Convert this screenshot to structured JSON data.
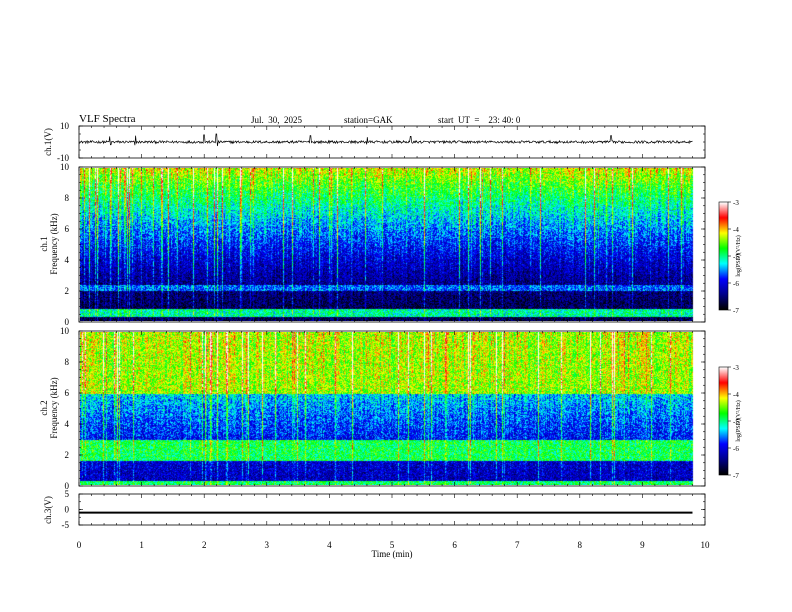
{
  "header": {
    "title": "VLF  Spectra",
    "date": "Jul.  30,  2025",
    "station": "station=GAK",
    "start": "start  UT  =    23: 40: 0"
  },
  "chart_data": [
    {
      "type": "line",
      "name": "ch1-waveform",
      "ylabel": "ch.1(V)",
      "ylim": [
        -10,
        10
      ],
      "yticks": [
        "10",
        "-10"
      ],
      "baseline": 0.0,
      "spike_times_min": [
        0.5,
        0.9,
        2.0,
        2.2,
        3.7,
        4.6,
        5.3,
        8.5
      ],
      "spike_values": [
        3.5,
        4.0,
        4.5,
        5.0,
        4.0,
        3.0,
        3.5,
        4.0
      ]
    },
    {
      "type": "heatmap",
      "name": "ch1-spectrogram",
      "ylabel": "ch.1\nFrequency (kHz)",
      "ylim": [
        0,
        10
      ],
      "yticks": [
        "0",
        "2",
        "4",
        "6",
        "8",
        "10"
      ],
      "xlim": [
        0,
        10
      ],
      "data_extent_min": 9.8,
      "colorbar": {
        "label": "log(PSD)(V²/Hz)",
        "range": [
          -7,
          -3
        ],
        "ticks": [
          "-3",
          "-4",
          "-5",
          "-6",
          "-7"
        ]
      },
      "band_khz": [
        [
          2.0,
          2.4,
          -5.8
        ],
        [
          0.3,
          0.8,
          -5.2
        ]
      ],
      "floor_log_psd": -6.8,
      "top_log_psd": -4.5
    },
    {
      "type": "heatmap",
      "name": "ch2-spectrogram",
      "ylabel": "ch.2\nFrequency (kHz)",
      "ylim": [
        0,
        10
      ],
      "yticks": [
        "0",
        "2",
        "4",
        "6",
        "8",
        "10"
      ],
      "xlim": [
        0,
        10
      ],
      "data_extent_min": 9.8,
      "colorbar": {
        "label": "log(PSD)(V²/Hz)",
        "range": [
          -7,
          -3
        ],
        "ticks": [
          "-3",
          "-4",
          "-5",
          "-6",
          "-7"
        ]
      },
      "band_khz": [
        [
          1.6,
          3.0,
          -5.0
        ],
        [
          6.0,
          10.0,
          -4.6
        ],
        [
          0.0,
          0.3,
          -5.0
        ]
      ],
      "floor_log_psd": -6.3,
      "top_log_psd": -4.6
    },
    {
      "type": "line",
      "name": "ch3-waveform",
      "ylabel": "ch.3(V)",
      "ylim": [
        -5,
        5
      ],
      "yticks": [
        "5",
        "0",
        "-5"
      ],
      "baseline": -1.0
    }
  ],
  "xaxis": {
    "label": "Time  (min)",
    "ticks": [
      "0",
      "1",
      "2",
      "3",
      "4",
      "5",
      "6",
      "7",
      "8",
      "9",
      "10"
    ],
    "range": [
      0,
      10
    ]
  },
  "colors": {
    "background": "#ffffff",
    "axes": "#000000",
    "colormap": [
      "#000000",
      "#00008b",
      "#0000ff",
      "#00ffff",
      "#00ff00",
      "#ffff00",
      "#ff0000",
      "#ffffff"
    ]
  }
}
